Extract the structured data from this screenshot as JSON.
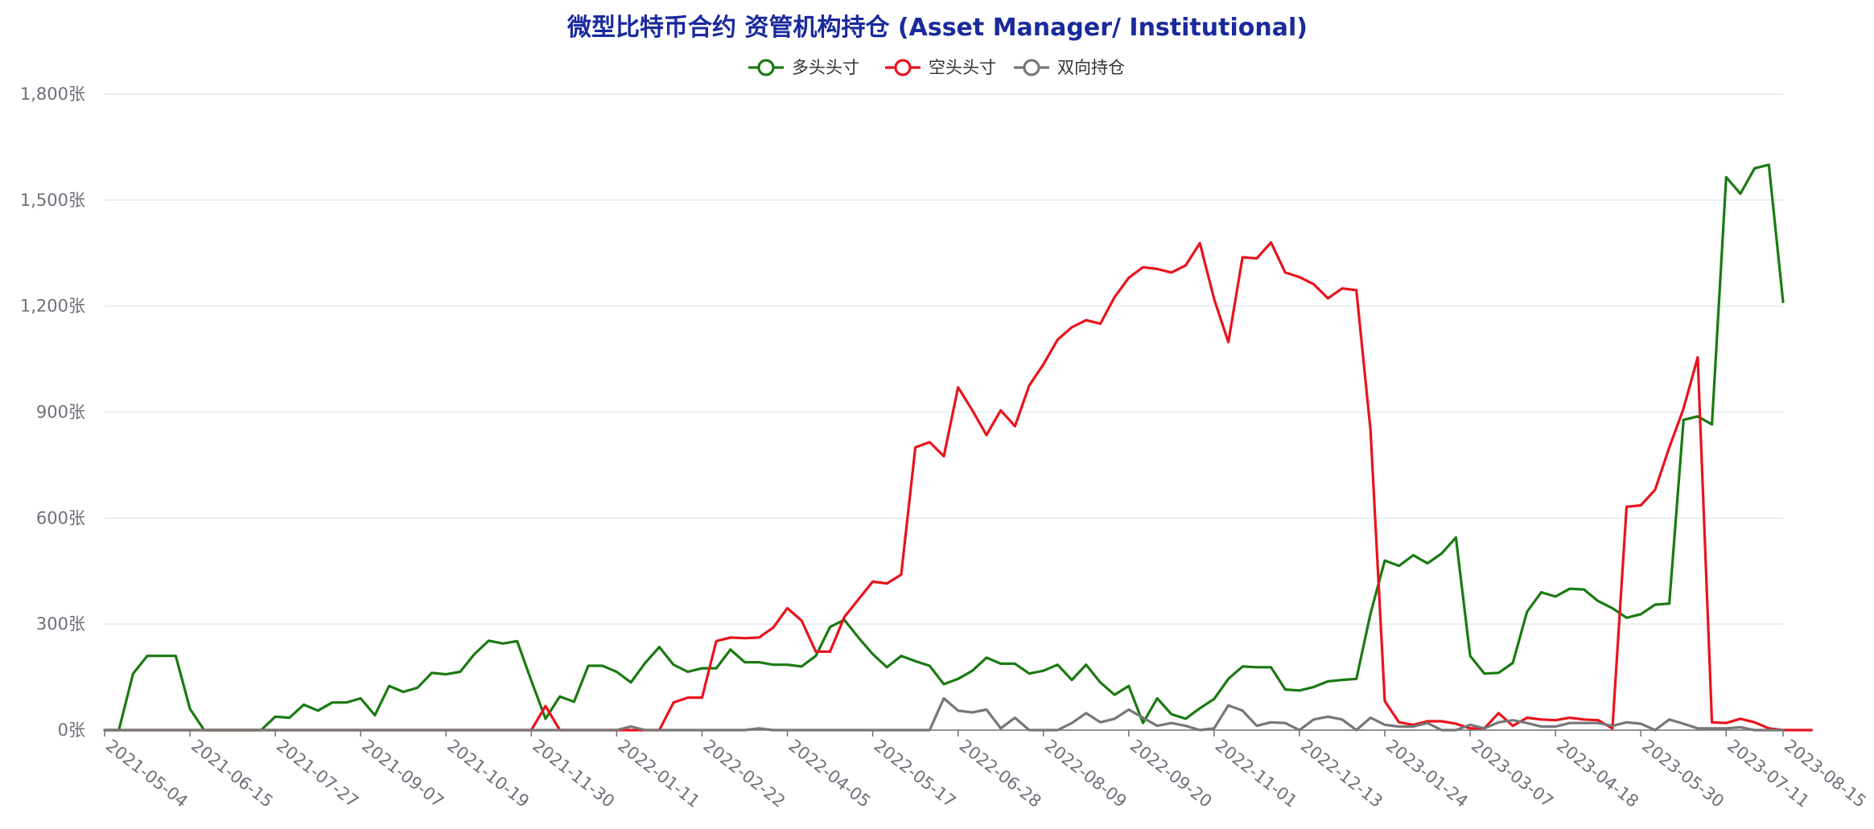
{
  "chart_data": {
    "type": "line",
    "title": "微型比特币合约 资管机构持仓 (Asset Manager/ Institutional)",
    "unit_suffix": "张",
    "ylim": [
      0,
      1800
    ],
    "y_ticks": [
      "0张",
      "300张",
      "600张",
      "900张",
      "1,200张",
      "1,500张",
      "1,800张"
    ],
    "x_tick_labels": [
      "2021-05-04",
      "2021-06-15",
      "2021-07-27",
      "2021-09-07",
      "2021-10-19",
      "2021-11-30",
      "2022-01-11",
      "2022-02-22",
      "2022-04-05",
      "2022-05-17",
      "2022-06-28",
      "2022-08-09",
      "2022-09-20",
      "2022-11-01",
      "2022-12-13",
      "2023-01-24",
      "2023-03-07",
      "2023-04-18",
      "2023-05-30",
      "2023-07-11",
      "2023-08-15"
    ],
    "grid": true,
    "legend_position": "top-center",
    "series": [
      {
        "name": "多头头寸",
        "color": "#1a7a12",
        "values": [
          0,
          0,
          160,
          210,
          210,
          210,
          60,
          0,
          0,
          0,
          0,
          0,
          38,
          35,
          72,
          55,
          78,
          78,
          90,
          42,
          125,
          108,
          120,
          162,
          158,
          165,
          215,
          253,
          245,
          252,
          140,
          32,
          95,
          80,
          182,
          182,
          165,
          135,
          190,
          235,
          185,
          165,
          175,
          175,
          228,
          192,
          192,
          185,
          185,
          180,
          210,
          292,
          312,
          262,
          215,
          178,
          210,
          195,
          182,
          130,
          145,
          168,
          205,
          188,
          188,
          160,
          168,
          185,
          142,
          185,
          135,
          100,
          125,
          20,
          90,
          45,
          32,
          62,
          88,
          145,
          180,
          178,
          178,
          115,
          112,
          122,
          138,
          142,
          145,
          330,
          480,
          465,
          495,
          472,
          500,
          545,
          210,
          160,
          162,
          190,
          335,
          390,
          378,
          400,
          398,
          365,
          345,
          318,
          328,
          355,
          358,
          878,
          888,
          865,
          1565,
          1518,
          1590,
          1600,
          1212
        ]
      },
      {
        "name": "空头头寸",
        "color": "#e8131d",
        "values": [
          0,
          0,
          0,
          0,
          0,
          0,
          0,
          0,
          0,
          0,
          0,
          0,
          0,
          0,
          0,
          0,
          0,
          0,
          0,
          0,
          0,
          0,
          0,
          0,
          0,
          0,
          0,
          0,
          0,
          0,
          0,
          68,
          0,
          0,
          0,
          0,
          0,
          0,
          0,
          0,
          78,
          92,
          92,
          252,
          262,
          260,
          262,
          290,
          345,
          310,
          222,
          222,
          320,
          370,
          420,
          415,
          440,
          800,
          815,
          775,
          970,
          905,
          835,
          905,
          860,
          975,
          1035,
          1105,
          1140,
          1160,
          1150,
          1225,
          1280,
          1310,
          1305,
          1295,
          1315,
          1378,
          1220,
          1098,
          1338,
          1335,
          1380,
          1295,
          1282,
          1262,
          1222,
          1250,
          1245,
          848,
          82,
          22,
          15,
          25,
          25,
          18,
          5,
          5,
          48,
          12,
          35,
          30,
          28,
          35,
          30,
          28,
          5,
          632,
          636,
          680,
          800,
          910,
          1055,
          22,
          20,
          32,
          22,
          5,
          0,
          0,
          0
        ]
      },
      {
        "name": "双向持仓",
        "color": "#777777",
        "values": [
          0,
          0,
          0,
          0,
          0,
          0,
          0,
          0,
          0,
          0,
          0,
          0,
          0,
          0,
          0,
          0,
          0,
          0,
          0,
          0,
          0,
          0,
          0,
          0,
          0,
          0,
          0,
          0,
          0,
          0,
          0,
          0,
          0,
          0,
          0,
          0,
          0,
          10,
          0,
          0,
          0,
          0,
          0,
          0,
          0,
          0,
          5,
          0,
          0,
          0,
          0,
          0,
          0,
          0,
          0,
          0,
          0,
          0,
          0,
          90,
          55,
          50,
          58,
          5,
          35,
          0,
          0,
          0,
          20,
          48,
          22,
          32,
          58,
          35,
          12,
          20,
          12,
          0,
          5,
          70,
          55,
          12,
          22,
          20,
          0,
          30,
          38,
          30,
          0,
          35,
          15,
          10,
          10,
          20,
          0,
          0,
          15,
          5,
          22,
          28,
          20,
          10,
          10,
          20,
          20,
          20,
          12,
          22,
          18,
          0,
          30,
          18,
          5,
          5,
          5,
          8,
          0,
          0,
          0
        ]
      }
    ]
  }
}
